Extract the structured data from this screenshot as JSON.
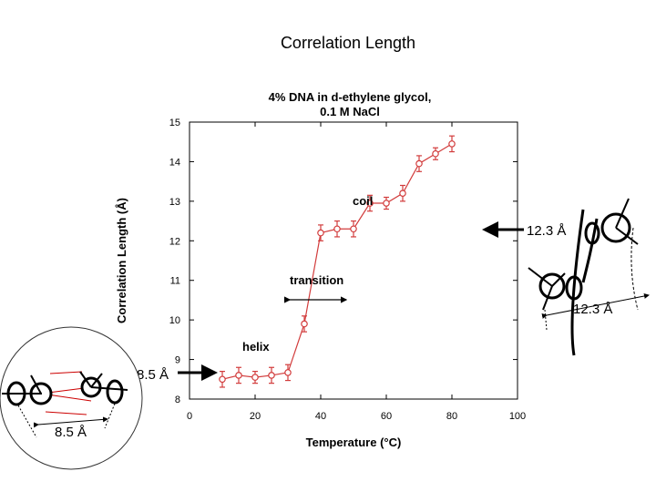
{
  "slide_title": "Correlation Length",
  "chart_data": {
    "type": "scatter",
    "title_line1": "4% DNA in d-ethylene glycol,",
    "title_line2": "0.1 M NaCl",
    "xlabel": "Temperature (°C)",
    "ylabel": "Correlation Length (Å)",
    "xlim": [
      0,
      100
    ],
    "ylim": [
      8,
      15
    ],
    "x_ticks": [
      "0",
      "20",
      "40",
      "60",
      "80",
      "100"
    ],
    "y_ticks": [
      "8",
      "9",
      "10",
      "11",
      "12",
      "13",
      "14",
      "15"
    ],
    "series": [
      {
        "name": "correlation length",
        "color": "#d23c3c",
        "x": [
          10,
          15,
          20,
          25,
          30,
          35,
          40,
          45,
          50,
          55,
          60,
          65,
          70,
          75,
          80
        ],
        "y": [
          8.5,
          8.6,
          8.55,
          8.6,
          8.67,
          9.9,
          12.2,
          12.3,
          12.3,
          12.95,
          12.95,
          13.2,
          13.95,
          14.2,
          14.45
        ],
        "err": [
          0.2,
          0.2,
          0.15,
          0.2,
          0.2,
          0.2,
          0.2,
          0.2,
          0.2,
          0.2,
          0.15,
          0.2,
          0.2,
          0.15,
          0.2
        ]
      }
    ],
    "annotations": [
      "helix",
      "transition",
      "coil"
    ]
  },
  "callouts": {
    "helix_spacing": "8.5 Å",
    "coil_spacing": "12.3 Å",
    "diagram_helix_spacing": "8.5 Å",
    "diagram_coil_spacing": "12.3 Å"
  }
}
